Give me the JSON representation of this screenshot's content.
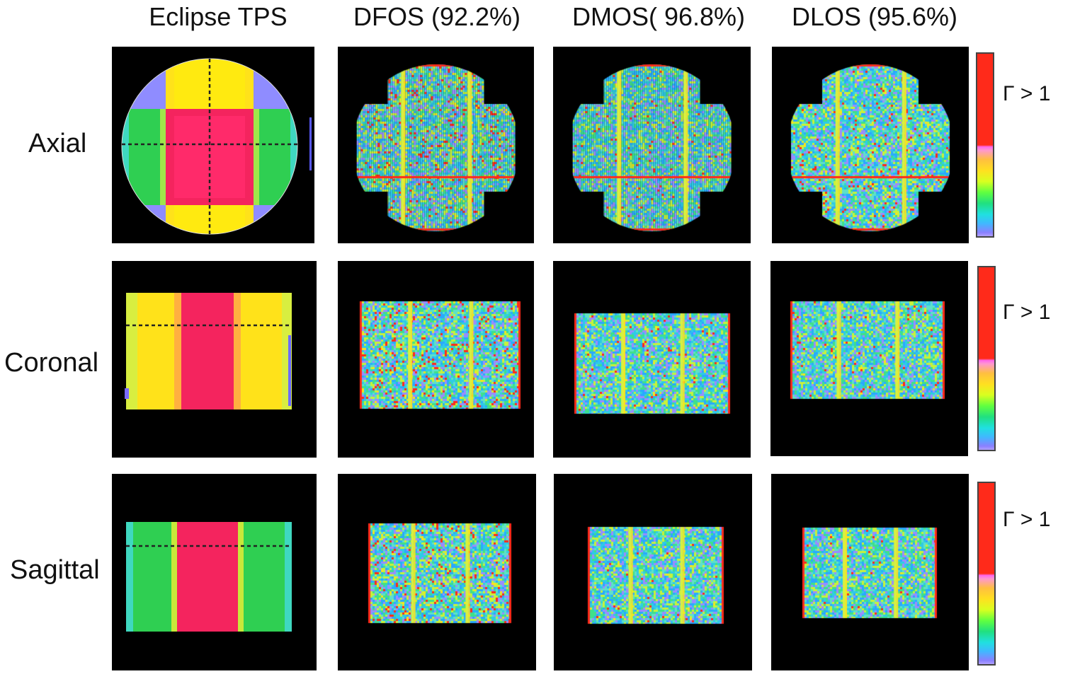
{
  "columns": [
    "Eclipse TPS",
    "DFOS (92.2%)",
    "DMOS( 96.8%)",
    "DLOS (95.6%)"
  ],
  "rows": [
    "Axial",
    "Coronal",
    "Sagittal"
  ],
  "colorbar": {
    "label": "Γ > 1",
    "colors": [
      "#ff2a1a",
      "#ff66ee",
      "#ffe020",
      "#60ff40",
      "#20e0e0",
      "#8a80ff"
    ]
  },
  "dose_colors": {
    "high": "#f4245e",
    "mid": "#ffe21a",
    "mid_green": "#2fcf52",
    "low": "#8f8cff"
  },
  "gamma_colors": [
    "#2ecbe6",
    "#3fe08a",
    "#9a8cff",
    "#c8f23a",
    "#2aa8ff",
    "#5fe0c8"
  ]
}
